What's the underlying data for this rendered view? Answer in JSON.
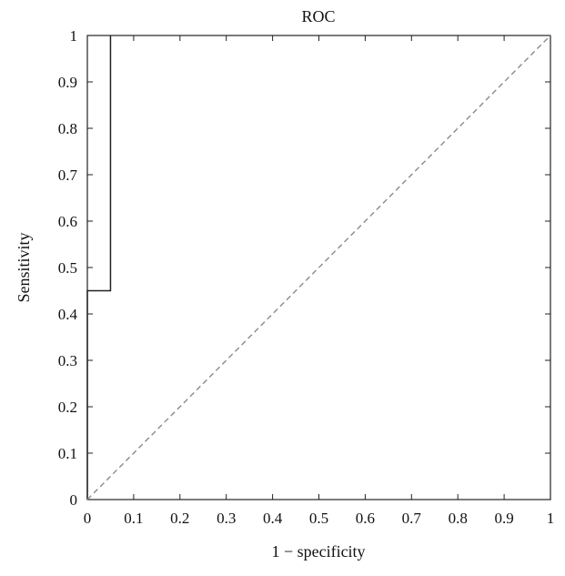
{
  "chart_data": {
    "type": "line",
    "title": "ROC",
    "xlabel": "1 − specificity",
    "ylabel": "Sensitivity",
    "xlim": [
      0,
      1
    ],
    "ylim": [
      0,
      1
    ],
    "grid": false,
    "x_ticks": [
      "0",
      "0.1",
      "0.2",
      "0.3",
      "0.4",
      "0.5",
      "0.6",
      "0.7",
      "0.8",
      "0.9",
      "1"
    ],
    "y_ticks": [
      "0",
      "0.1",
      "0.2",
      "0.3",
      "0.4",
      "0.5",
      "0.6",
      "0.7",
      "0.8",
      "0.9",
      "1"
    ],
    "series": [
      {
        "style": "solid",
        "color": "#222222",
        "x": [
          0,
          0,
          0.05,
          0.05,
          0.05
        ],
        "y": [
          0,
          0.45,
          0.45,
          1,
          1
        ]
      },
      {
        "style": "dashed",
        "color": "#8a8a8a",
        "x": [
          0,
          1
        ],
        "y": [
          0,
          1
        ]
      }
    ]
  }
}
